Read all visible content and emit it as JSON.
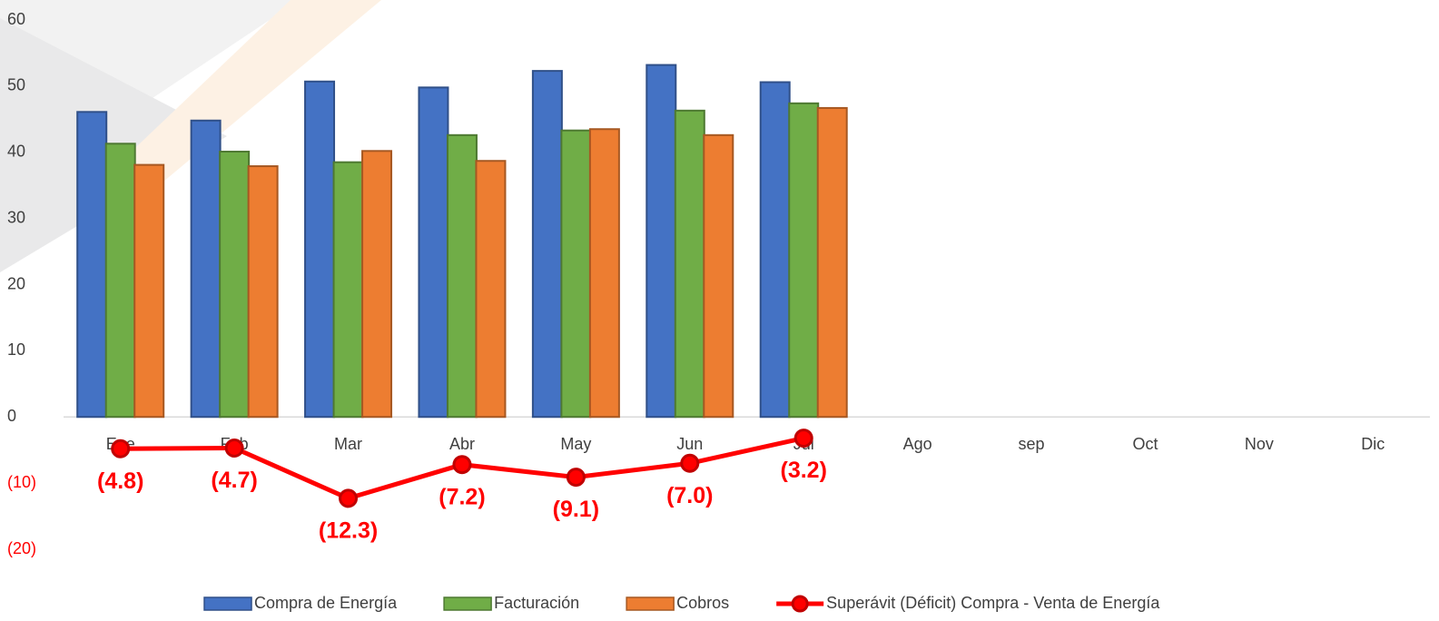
{
  "chart_data": {
    "type": "bar",
    "categories": [
      "Ene",
      "Feb",
      "Mar",
      "Abr",
      "May",
      "Jun",
      "Jul",
      "Ago",
      "sep",
      "Oct",
      "Nov",
      "Dic"
    ],
    "series": [
      {
        "name": "Compra de Energía",
        "color": "#4472c4",
        "values": [
          46.1,
          44.8,
          50.7,
          49.8,
          52.3,
          53.2,
          50.6,
          null,
          null,
          null,
          null,
          null
        ]
      },
      {
        "name": "Facturación",
        "color": "#70ad47",
        "values": [
          41.3,
          40.1,
          38.5,
          42.6,
          43.3,
          46.3,
          47.4,
          null,
          null,
          null,
          null,
          null
        ]
      },
      {
        "name": "Cobros",
        "color": "#ed7d31",
        "values": [
          38.1,
          37.9,
          40.2,
          38.7,
          43.5,
          42.6,
          46.7,
          null,
          null,
          null,
          null,
          null
        ]
      },
      {
        "name": "Superávit (Déficit) Compra - Venta de Energía",
        "type": "line",
        "color": "#ff0000",
        "values": [
          -4.8,
          -4.7,
          -12.3,
          -7.2,
          -9.1,
          -7.0,
          -3.2,
          null,
          null,
          null,
          null,
          null
        ],
        "value_labels": [
          "(4.8)",
          "(4.7)",
          "(12.3)",
          "(7.2)",
          "(9.1)",
          "(7.0)",
          "(3.2)",
          null,
          null,
          null,
          null,
          null
        ]
      }
    ],
    "ylim": [
      -20,
      60
    ],
    "yticks": [
      {
        "value": -20,
        "label": "(20)"
      },
      {
        "value": -10,
        "label": "(10)"
      },
      0,
      10,
      20,
      30,
      40,
      50,
      60
    ],
    "legend": "bottom"
  }
}
